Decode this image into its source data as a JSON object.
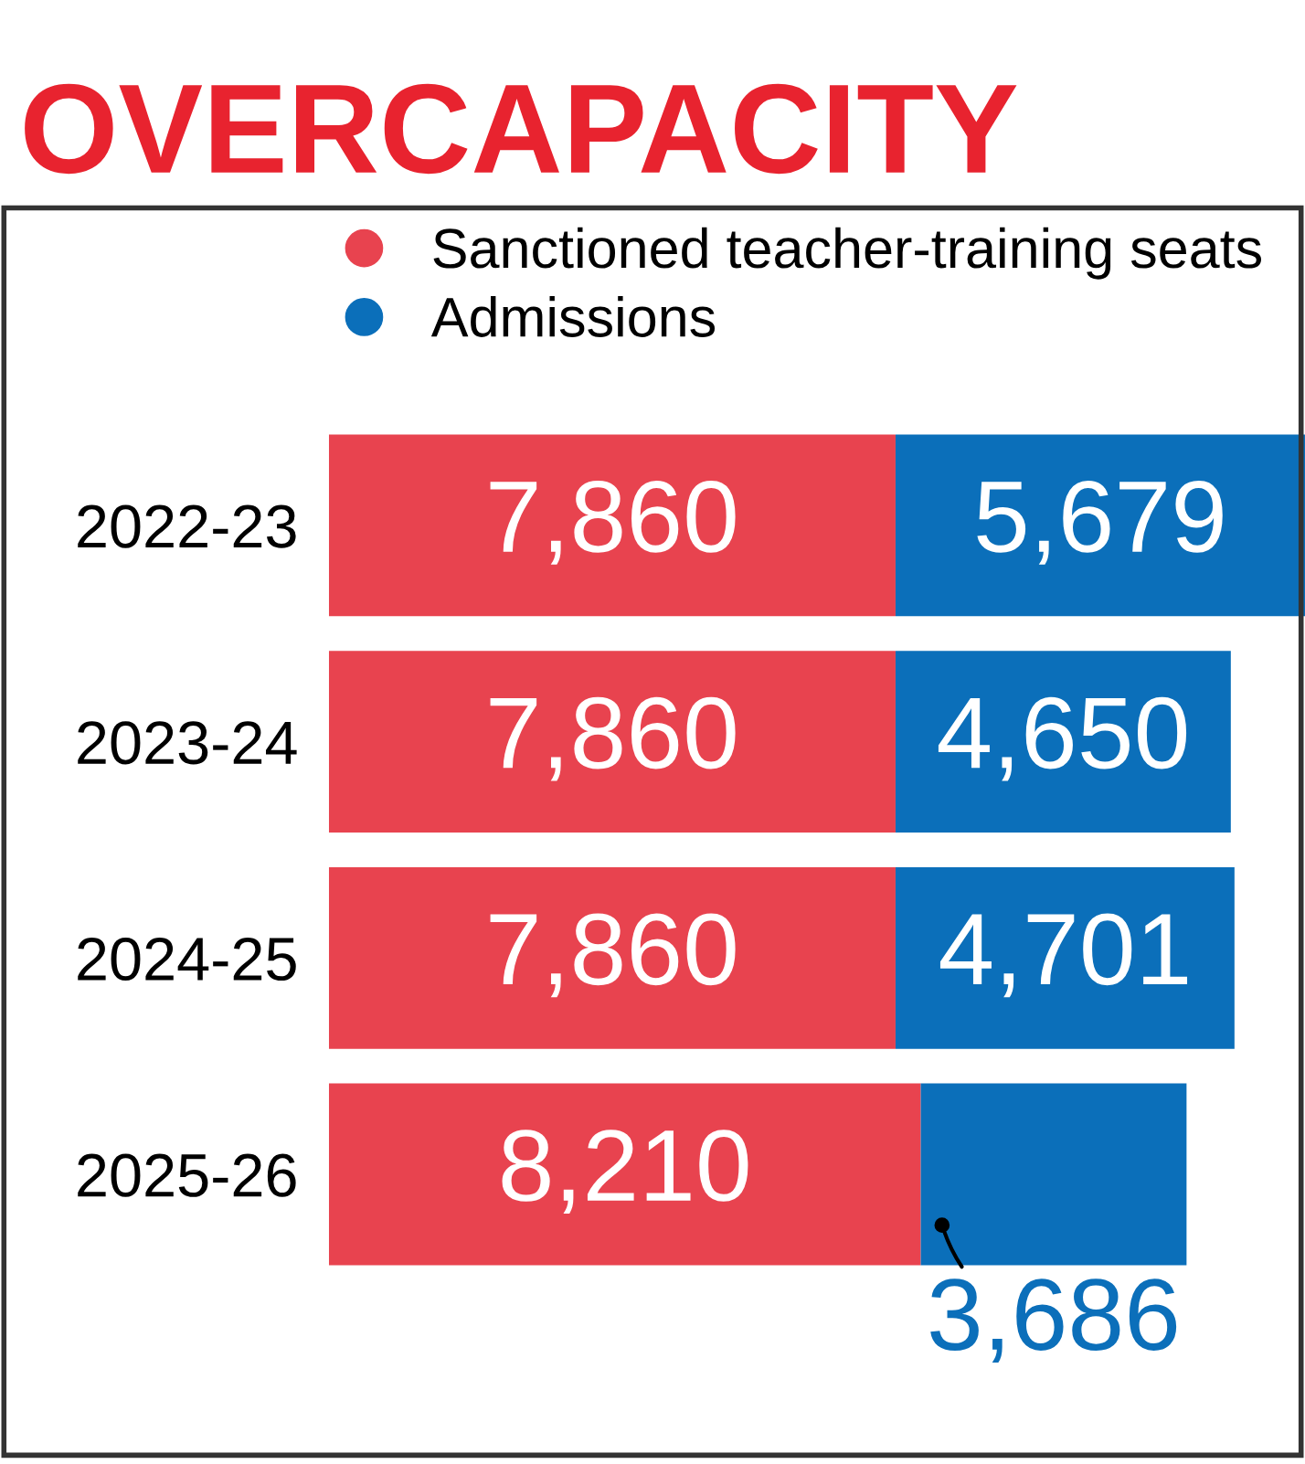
{
  "chart_data": {
    "type": "bar",
    "orientation": "horizontal",
    "stacked": true,
    "title": "OVERCAPACITY",
    "categories": [
      "2022-23",
      "2023-24",
      "2024-25",
      "2025-26"
    ],
    "series": [
      {
        "name": "Sanctioned teacher-training seats",
        "color": "#e8434f",
        "values": [
          7860,
          7860,
          7860,
          8210
        ],
        "value_labels": [
          "7,860",
          "7,860",
          "7,860",
          "8,210"
        ]
      },
      {
        "name": "Admissions",
        "color": "#0b6fba",
        "values": [
          5679,
          4650,
          4701,
          3686
        ],
        "value_labels": [
          "5,679",
          "4,650",
          "4,701",
          "3,686"
        ]
      }
    ],
    "legend": "top right"
  }
}
